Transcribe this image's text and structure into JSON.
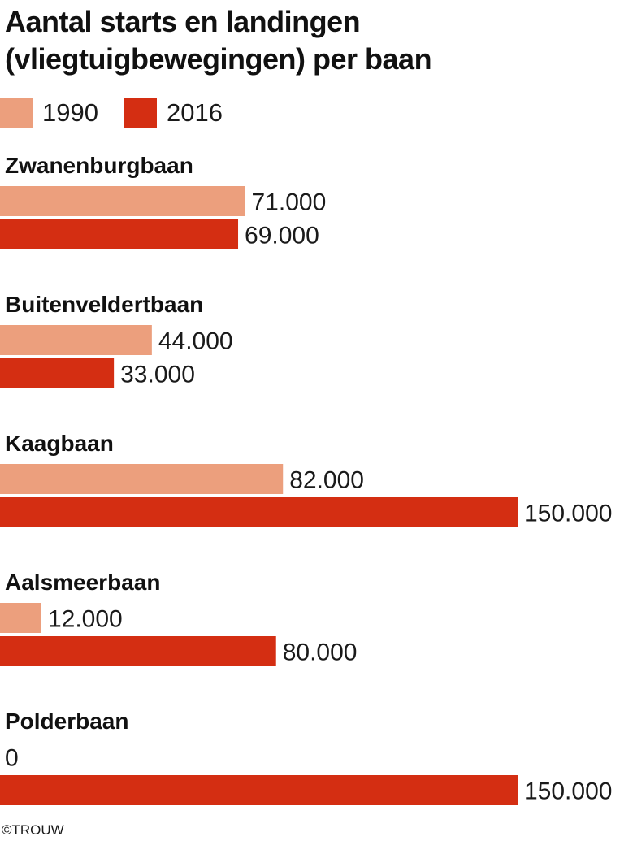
{
  "chart_data": {
    "type": "bar",
    "orientation": "horizontal",
    "title": "Aantal starts en landingen (vliegtuigbewegingen) per baan",
    "categories": [
      "Zwanenburgbaan",
      "Buitenveldertbaan",
      "Kaagbaan",
      "Aalsmeerbaan",
      "Polderbaan"
    ],
    "series": [
      {
        "name": "1990",
        "color": "#ec9f7d",
        "values": [
          71000,
          44000,
          82000,
          12000,
          0
        ],
        "labels": [
          "71.000",
          "44.000",
          "82.000",
          "12.000",
          "0"
        ]
      },
      {
        "name": "2016",
        "color": "#d42e12",
        "values": [
          69000,
          33000,
          150000,
          80000,
          150000
        ],
        "labels": [
          "69.000",
          "33.000",
          "150.000",
          "80.000",
          "150.000"
        ]
      }
    ],
    "xlim": [
      0,
      150000
    ],
    "grid": false,
    "legend_position": "top-left"
  },
  "credit": "©TROUW"
}
